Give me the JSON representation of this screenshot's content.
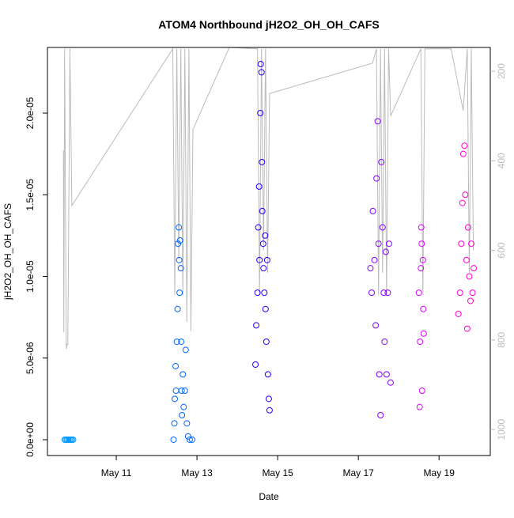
{
  "chart_data": {
    "type": "scatter",
    "title": "ATOM4 Northbound jH2O2_OH_OH_CAFS",
    "xlabel": "Date",
    "ylabel": "jH2O2_OH_OH_CAFS",
    "xlim": [
      9.294,
      20.27
    ],
    "xticks": [
      {
        "value": 11,
        "label": "May 11"
      },
      {
        "value": 13,
        "label": "May 13"
      },
      {
        "value": 15,
        "label": "May 15"
      },
      {
        "value": 17,
        "label": "May 17"
      },
      {
        "value": 19,
        "label": "May 19"
      }
    ],
    "ylim": [
      -9.7e-07,
      2.402e-05
    ],
    "yticks": [
      {
        "value": 0,
        "label": "0.0e+00"
      },
      {
        "value": 5e-06,
        "label": "5.0e-06"
      },
      {
        "value": 1e-05,
        "label": "1.0e-05"
      },
      {
        "value": 1.5e-05,
        "label": "1.5e-05"
      },
      {
        "value": 2e-05,
        "label": "2.0e-05"
      }
    ],
    "y2lim": [
      1058,
      147
    ],
    "y2ticks": [
      200,
      400,
      600,
      800,
      1000
    ],
    "y2color": "#bbbbbb",
    "series": [
      {
        "color": "#0099ff",
        "x": [
          9.72,
          9.75,
          9.78,
          9.81,
          9.84,
          9.87,
          9.9,
          9.93
        ],
        "values": [
          0,
          0,
          0,
          0,
          0,
          0,
          0,
          0
        ]
      },
      {
        "color": "#0066ff",
        "x": [
          12.42,
          12.44,
          12.45,
          12.47,
          12.48,
          12.5,
          12.52,
          12.53,
          12.55,
          12.56,
          12.57,
          12.58,
          12.6,
          12.61,
          12.62,
          12.63,
          12.65,
          12.67,
          12.7,
          12.72,
          12.75,
          12.78,
          12.82,
          12.88
        ],
        "values": [
          0,
          1e-06,
          2.5e-06,
          4.5e-06,
          3e-06,
          6e-06,
          8e-06,
          1.2e-05,
          1.3e-05,
          1.1e-05,
          9e-06,
          1.22e-05,
          1.05e-05,
          6e-06,
          3e-06,
          1.5e-06,
          4e-06,
          2e-06,
          3e-06,
          5.5e-06,
          1e-06,
          2e-07,
          0,
          0
        ]
      },
      {
        "color": "#2200ff",
        "x": [
          14.45,
          14.47,
          14.5,
          14.52,
          14.54,
          14.55,
          14.57,
          14.58,
          14.6,
          14.61,
          14.62,
          14.64,
          14.65,
          14.67,
          14.69,
          14.7,
          14.72,
          14.74,
          14.76,
          14.78,
          14.8
        ],
        "values": [
          4.6e-06,
          7e-06,
          9e-06,
          1.3e-05,
          1.55e-05,
          1.1e-05,
          2e-05,
          2.3e-05,
          2.25e-05,
          1.7e-05,
          1.4e-05,
          1.2e-05,
          1.05e-05,
          9e-06,
          1.25e-05,
          8e-06,
          6e-06,
          1.1e-05,
          4e-06,
          2.5e-06,
          1.8e-06
        ]
      },
      {
        "color": "#8800ff",
        "x": [
          17.3,
          17.33,
          17.36,
          17.4,
          17.43,
          17.45,
          17.48,
          17.5,
          17.52,
          17.55,
          17.57,
          17.6,
          17.63,
          17.65,
          17.68,
          17.7,
          17.73,
          17.76,
          17.8
        ],
        "values": [
          1.05e-05,
          9e-06,
          1.4e-05,
          1.1e-05,
          7e-06,
          1.6e-05,
          1.95e-05,
          1.2e-05,
          4e-06,
          1.5e-06,
          1.7e-05,
          1.3e-05,
          9e-06,
          6e-06,
          1.15e-05,
          4e-06,
          9e-06,
          1.2e-05,
          3.5e-06
        ]
      },
      {
        "color": "#dd00ff",
        "x": [
          18.5,
          18.52,
          18.53,
          18.55,
          18.56,
          18.57,
          18.58,
          18.6,
          18.61,
          18.62
        ],
        "values": [
          9e-06,
          2e-06,
          6e-06,
          1.05e-05,
          1.3e-05,
          1.2e-05,
          3e-06,
          1.1e-05,
          8e-06,
          6.5e-06
        ]
      },
      {
        "color": "#ff00cc",
        "x": [
          19.48,
          19.52,
          19.55,
          19.58,
          19.6,
          19.63,
          19.65,
          19.68,
          19.7,
          19.72,
          19.75,
          19.78,
          19.8,
          19.83,
          19.86
        ],
        "values": [
          7.7e-06,
          9e-06,
          1.2e-05,
          1.45e-05,
          1.75e-05,
          1.8e-05,
          1.5e-05,
          1.1e-05,
          6.8e-06,
          1.3e-05,
          1e-05,
          8.5e-06,
          1.2e-05,
          9e-06,
          1.05e-05
        ]
      }
    ],
    "altitude": {
      "color": "#bbbbbb",
      "axis": "y2",
      "x": [
        9.69,
        9.7,
        9.72,
        9.76,
        9.78,
        9.8,
        9.85,
        9.9,
        12.4,
        12.45,
        12.5,
        12.55,
        12.6,
        12.65,
        12.7,
        12.75,
        12.8,
        12.85,
        12.9,
        13.8,
        14.5,
        14.55,
        14.6,
        14.65,
        14.7,
        14.75,
        14.8,
        17.35,
        17.45,
        17.5,
        17.55,
        17.6,
        17.65,
        17.7,
        17.75,
        17.8,
        18.55,
        18.6,
        18.65,
        19.3,
        19.6,
        19.7,
        19.75,
        19.8,
        19.85
      ],
      "values": [
        377,
        783,
        150,
        820,
        810,
        810,
        150,
        500,
        150,
        700,
        150,
        620,
        150,
        700,
        150,
        760,
        150,
        780,
        330,
        147,
        150,
        700,
        150,
        600,
        150,
        650,
        250,
        182,
        150,
        700,
        150,
        650,
        150,
        700,
        150,
        300,
        150,
        700,
        150,
        150,
        288,
        150,
        650,
        150,
        600
      ]
    }
  }
}
